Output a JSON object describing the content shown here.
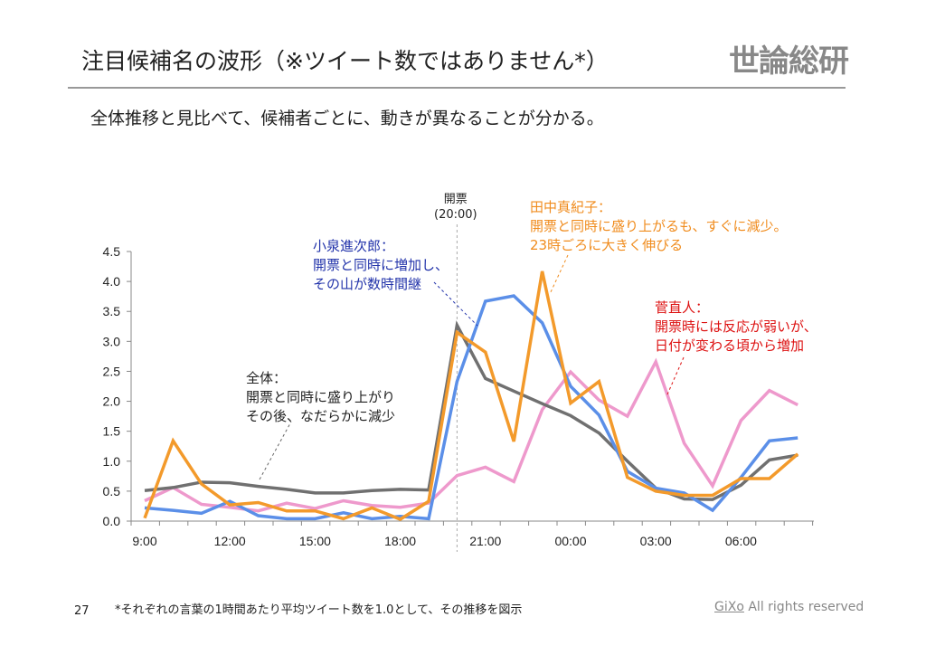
{
  "header": {
    "title": "注目候補名の波形（※ツイート数ではありません*）",
    "logo": "世論総研",
    "subtitle": "全体推移と見比べて、候補者ごとに、動きが異なることが分かる。"
  },
  "annotations": {
    "open_label": "開票\n(20:00)",
    "total": "全体：\n開票と同時に盛り上がり\nその後、なだらかに減少",
    "koizumi": "小泉進次郎：\n開票と同時に増加し、\nその山が数時間継",
    "tanaka": "田中真紀子：\n開票と同時に盛り上がるも、すぐに減少。\n23時ごろに大きく伸びる",
    "kan": "菅直人：\n開票時には反応が弱いが、\n日付が変わる頃から増加"
  },
  "footer": {
    "page": "27",
    "note": "*それぞれの言葉の1時間あたり平均ツイート数を1.0として、その推移を図示",
    "brand": "GiXo",
    "rights": " All rights reserved"
  },
  "chart_data": {
    "type": "line",
    "x": [
      "9:00",
      "10:00",
      "11:00",
      "12:00",
      "13:00",
      "14:00",
      "15:00",
      "16:00",
      "17:00",
      "18:00",
      "19:00",
      "20:00",
      "21:00",
      "22:00",
      "23:00",
      "00:00",
      "01:00",
      "02:00",
      "03:00",
      "04:00",
      "05:00",
      "06:00",
      "07:00",
      "08:00"
    ],
    "xticklabels": [
      "9:00",
      "12:00",
      "15:00",
      "18:00",
      "21:00",
      "00:00",
      "03:00",
      "06:00"
    ],
    "yticklabels": [
      "0.0",
      "0.5",
      "1.0",
      "1.5",
      "2.0",
      "2.5",
      "3.0",
      "3.5",
      "4.0",
      "4.5"
    ],
    "ylim": [
      0,
      4.5
    ],
    "grid": false,
    "series": [
      {
        "color": "#ee99cc",
        "values": [
          0.34,
          0.56,
          0.28,
          0.23,
          0.17,
          0.3,
          0.21,
          0.34,
          0.26,
          0.23,
          0.3,
          0.76,
          0.9,
          0.66,
          1.86,
          2.49,
          2.02,
          1.75,
          2.66,
          1.3,
          0.59,
          1.68,
          2.18,
          1.94
        ]
      },
      {
        "color": "#707070",
        "values": [
          0.51,
          0.56,
          0.65,
          0.64,
          0.58,
          0.53,
          0.47,
          0.47,
          0.51,
          0.53,
          0.52,
          3.27,
          2.38,
          2.17,
          1.96,
          1.76,
          1.47,
          1.0,
          0.55,
          0.37,
          0.36,
          0.6,
          1.02,
          1.1
        ]
      },
      {
        "color": "#5b8fe8",
        "values": [
          0.22,
          0.18,
          0.13,
          0.33,
          0.09,
          0.04,
          0.04,
          0.14,
          0.04,
          0.08,
          0.04,
          2.33,
          3.67,
          3.76,
          3.31,
          2.25,
          1.77,
          0.83,
          0.55,
          0.47,
          0.18,
          0.73,
          1.34,
          1.39
        ]
      },
      {
        "color": "#f39a2b",
        "values": [
          0.05,
          1.34,
          0.62,
          0.27,
          0.31,
          0.17,
          0.17,
          0.04,
          0.22,
          0.03,
          0.33,
          3.15,
          2.82,
          1.33,
          4.17,
          1.97,
          2.33,
          0.73,
          0.5,
          0.43,
          0.43,
          0.71,
          0.71,
          1.12
        ]
      }
    ]
  }
}
